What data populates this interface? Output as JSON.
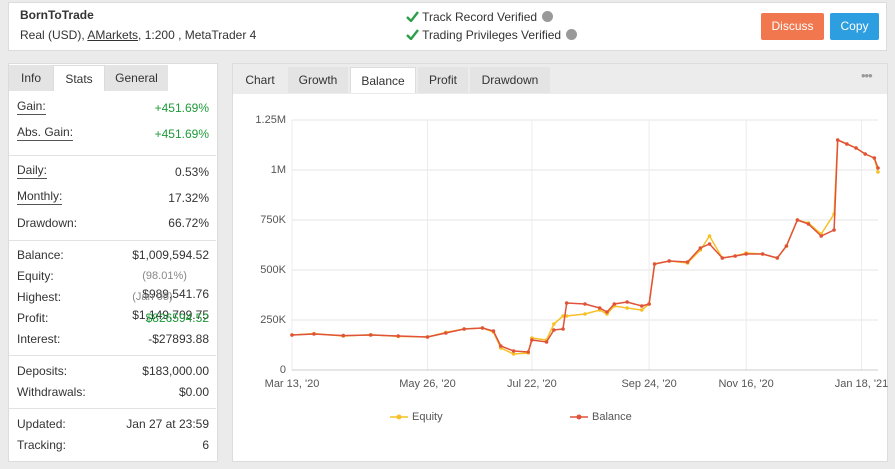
{
  "header": {
    "title": "BornToTrade",
    "account": "Real (USD),",
    "broker": "AMarkets",
    "details": ", 1:200 , MetaTrader 4",
    "verified": [
      "Track Record Verified",
      "Trading Privileges Verified"
    ],
    "buttons": [
      {
        "label": "Discuss",
        "color": "#f0774e"
      },
      {
        "label": "Copy",
        "color": "#2d9ee0"
      }
    ]
  },
  "left_tabs": {
    "items": [
      "Info",
      "Stats",
      "General"
    ],
    "active": 1
  },
  "stats": [
    [
      {
        "label": "Gain:",
        "value": "+451.69%",
        "color": "#1e9a3a",
        "underline": true
      },
      {
        "label": "Abs. Gain:",
        "value": "+451.69%",
        "color": "#1e9a3a",
        "underline": true
      }
    ],
    [
      {
        "label": "Daily:",
        "value": "0.53%",
        "underline": true
      },
      {
        "label": "Monthly:",
        "value": "17.32%",
        "underline": true
      },
      {
        "label": "Drawdown:",
        "value": "66.72%"
      }
    ],
    [
      {
        "label": "Balance:",
        "value": "$1,009,594.52"
      },
      {
        "label": "Equity:",
        "note": "(98.01%)",
        "value": "$989,541.76"
      },
      {
        "label": "Highest:",
        "note": "(Jan 05)",
        "value": "$1,149,709.75"
      },
      {
        "label": "Profit:",
        "value": "$826594.52",
        "color": "#1e9a3a"
      },
      {
        "label": "Interest:",
        "value": "-$27893.88"
      }
    ],
    [
      {
        "label": "Deposits:",
        "value": "$183,000.00"
      },
      {
        "label": "Withdrawals:",
        "value": "$0.00"
      }
    ],
    [
      {
        "label": "Updated:",
        "value": "Jan 27 at 23:59"
      },
      {
        "label": "Tracking:",
        "value": "6"
      }
    ]
  ],
  "chart_tabs": {
    "items": [
      "Chart",
      "Growth",
      "Balance",
      "Profit",
      "Drawdown"
    ],
    "active": 2
  },
  "chart_data": {
    "type": "line",
    "x": [
      "2020-03-13",
      "2020-03-25",
      "2020-04-10",
      "2020-04-25",
      "2020-05-10",
      "2020-05-26",
      "2020-06-05",
      "2020-06-15",
      "2020-06-25",
      "2020-07-01",
      "2020-07-05",
      "2020-07-12",
      "2020-07-20",
      "2020-07-22",
      "2020-07-30",
      "2020-08-03",
      "2020-08-08",
      "2020-08-10",
      "2020-08-20",
      "2020-08-28",
      "2020-09-01",
      "2020-09-05",
      "2020-09-12",
      "2020-09-20",
      "2020-09-24",
      "2020-09-27",
      "2020-10-05",
      "2020-10-15",
      "2020-10-22",
      "2020-10-27",
      "2020-11-03",
      "2020-11-10",
      "2020-11-16",
      "2020-11-25",
      "2020-12-03",
      "2020-12-08",
      "2020-12-14",
      "2020-12-20",
      "2020-12-27",
      "2021-01-03",
      "2021-01-05",
      "2021-01-10",
      "2021-01-15",
      "2021-01-20",
      "2021-01-25",
      "2021-01-27"
    ],
    "series": [
      {
        "name": "Equity",
        "color": "#f5c126",
        "values": [
          175000,
          182000,
          170000,
          176000,
          168000,
          165000,
          188000,
          205000,
          210000,
          190000,
          110000,
          80000,
          85000,
          160000,
          150000,
          230000,
          270000,
          270000,
          280000,
          300000,
          280000,
          320000,
          310000,
          300000,
          330000,
          530000,
          545000,
          535000,
          600000,
          670000,
          560000,
          570000,
          585000,
          580000,
          560000,
          620000,
          750000,
          735000,
          680000,
          780000,
          1150000,
          1130000,
          1110000,
          1080000,
          1060000,
          990000
        ]
      },
      {
        "name": "Balance",
        "color": "#e0533a",
        "values": [
          175000,
          180000,
          172000,
          175000,
          170000,
          165000,
          185000,
          205000,
          210000,
          195000,
          120000,
          95000,
          90000,
          150000,
          140000,
          200000,
          205000,
          335000,
          330000,
          310000,
          290000,
          330000,
          340000,
          320000,
          330000,
          530000,
          545000,
          540000,
          610000,
          630000,
          560000,
          570000,
          580000,
          580000,
          560000,
          620000,
          750000,
          730000,
          670000,
          700000,
          1150000,
          1130000,
          1110000,
          1080000,
          1060000,
          1010000
        ]
      }
    ],
    "xlim": [
      "2020-03-13",
      "2021-01-27"
    ],
    "xticks": [
      {
        "value": "2020-03-13",
        "label": "Mar 13, '20"
      },
      {
        "value": "2020-05-26",
        "label": "May 26, '20"
      },
      {
        "value": "2020-07-22",
        "label": "Jul 22, '20"
      },
      {
        "value": "2020-09-24",
        "label": "Sep 24, '20"
      },
      {
        "value": "2020-11-16",
        "label": "Nov 16, '20"
      },
      {
        "value": "2021-01-18",
        "label": "Jan 18, '21"
      }
    ],
    "ylim": [
      0,
      1250000
    ],
    "yticks": [
      0,
      {
        "value": 250000,
        "label": "250K"
      },
      {
        "value": 500000,
        "label": "500K"
      },
      {
        "value": 750000,
        "label": "750K"
      },
      {
        "value": 1000000,
        "label": "1M"
      },
      {
        "value": 1250000,
        "label": "1.25M"
      }
    ],
    "grid": true
  }
}
